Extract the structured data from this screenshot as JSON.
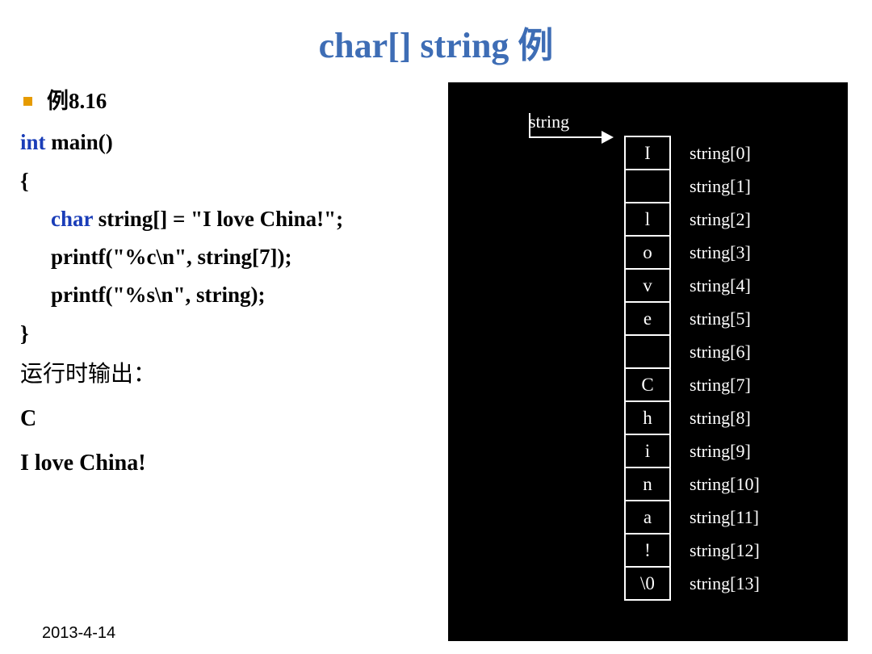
{
  "title": "char[] string 例",
  "bullet_text": "例8.16",
  "code": {
    "l1_kw": "int",
    "l1_rest": " main()",
    "l2": "{",
    "l3_kw": "char",
    "l3_rest": " string[] = \"I love China!\";",
    "l4": "printf(\"%c\\n\", string[7]);",
    "l5": "printf(\"%s\\n\", string);",
    "l6": "}"
  },
  "output_label": "运行时输出：",
  "output": {
    "line1": "C",
    "line2": "I love China!"
  },
  "diagram": {
    "pointer_label": "string",
    "cells": [
      "I",
      " ",
      "l",
      "o",
      "v",
      "e",
      " ",
      "C",
      "h",
      "i",
      "n",
      "a",
      "!",
      "\\0"
    ],
    "index_labels": [
      "string[0]",
      "string[1]",
      "string[2]",
      "string[3]",
      "string[4]",
      "string[5]",
      "string[6]",
      "string[7]",
      "string[8]",
      "string[9]",
      "string[10]",
      "string[11]",
      "string[12]",
      "string[13]"
    ]
  },
  "date": "2013-4-14",
  "colors": {
    "title": "#3e6db5",
    "keyword": "#1a3db8",
    "bullet": "#e69b00",
    "diagram_bg": "#000000",
    "diagram_fg": "#ffffff"
  }
}
